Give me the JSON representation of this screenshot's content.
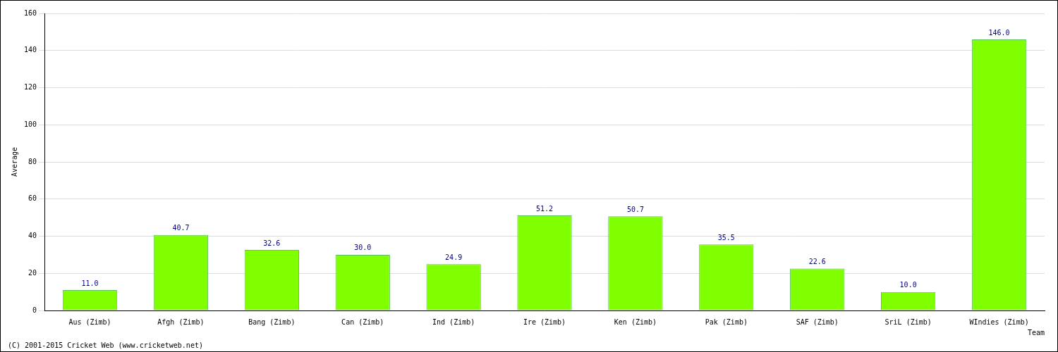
{
  "chart_data": {
    "type": "bar",
    "categories": [
      "Aus (Zimb)",
      "Afgh (Zimb)",
      "Bang (Zimb)",
      "Can (Zimb)",
      "Ind (Zimb)",
      "Ire (Zimb)",
      "Ken (Zimb)",
      "Pak (Zimb)",
      "SAF (Zimb)",
      "SriL (Zimb)",
      "WIndies (Zimb)"
    ],
    "values": [
      11,
      40.7,
      32.6,
      30,
      24.9,
      51.2,
      50.7,
      35.5,
      22.6,
      10,
      146
    ],
    "value_labels": [
      "11.0",
      "40.7",
      "32.6",
      "30.0",
      "24.9",
      "51.2",
      "50.7",
      "35.5",
      "22.6",
      "10.0",
      "146.0"
    ],
    "color": "#80ff00",
    "x_label": "Team",
    "y_label": "Average",
    "annotation": "(C) 2001-2015 Cricket Web (www.cricketweb.net)",
    "ylim": [
      0,
      160
    ],
    "yticks": [
      0,
      20,
      40,
      60,
      80,
      100,
      120,
      140,
      160
    ],
    "grid": true,
    "data_labels": true
  }
}
